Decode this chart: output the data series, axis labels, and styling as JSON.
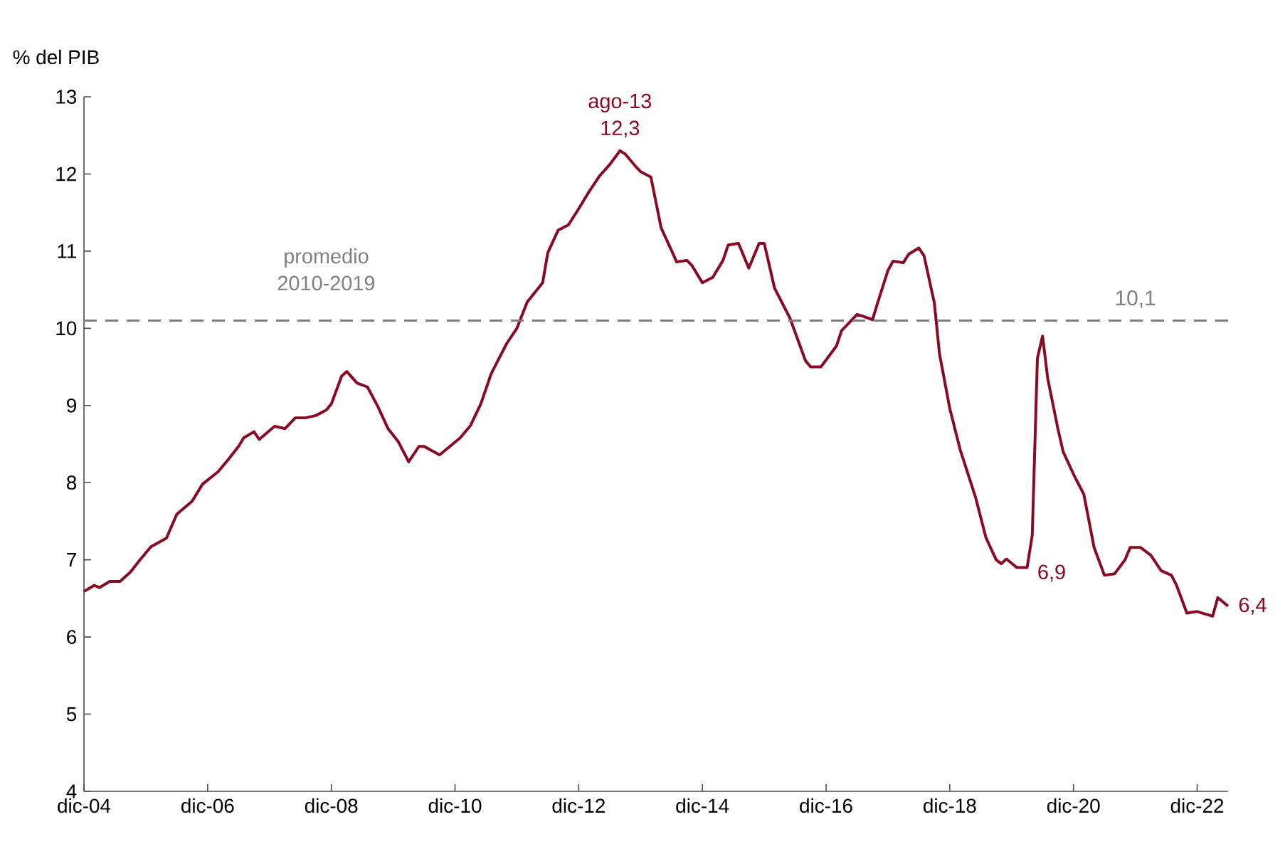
{
  "chart_data": {
    "type": "line",
    "ylabel": "% del PIB",
    "x": [
      "2004-12",
      "2005-02",
      "2005-03",
      "2005-05",
      "2005-07",
      "2005-09",
      "2005-11",
      "2006-01",
      "2006-04",
      "2006-06",
      "2006-09",
      "2006-11",
      "2007-02",
      "2007-04",
      "2007-06",
      "2007-07",
      "2007-09",
      "2007-10",
      "2008-01",
      "2008-03",
      "2008-05",
      "2008-07",
      "2008-09",
      "2008-11",
      "2008-12",
      "2009-02",
      "2009-03",
      "2009-05",
      "2009-07",
      "2009-09",
      "2009-11",
      "2010-01",
      "2010-03",
      "2010-05",
      "2010-06",
      "2010-09",
      "2010-11",
      "2011-01",
      "2011-03",
      "2011-05",
      "2011-07",
      "2011-10",
      "2011-12",
      "2012-02",
      "2012-05",
      "2012-06",
      "2012-08",
      "2012-10",
      "2012-12",
      "2013-02",
      "2013-04",
      "2013-06",
      "2013-08",
      "2013-09",
      "2013-11",
      "2013-12",
      "2014-02",
      "2014-04",
      "2014-06",
      "2014-07",
      "2014-09",
      "2014-10",
      "2014-12",
      "2015-02",
      "2015-04",
      "2015-05",
      "2015-07",
      "2015-09",
      "2015-11",
      "2015-12",
      "2016-02",
      "2016-05",
      "2016-08",
      "2016-09",
      "2016-11",
      "2017-02",
      "2017-03",
      "2017-06",
      "2017-07",
      "2017-09",
      "2017-10",
      "2017-12",
      "2018-01",
      "2018-03",
      "2018-04",
      "2018-06",
      "2018-07",
      "2018-09",
      "2018-10",
      "2018-12",
      "2019-02",
      "2019-05",
      "2019-07",
      "2019-09",
      "2019-10",
      "2019-11",
      "2020-01",
      "2020-03",
      "2020-04",
      "2020-05",
      "2020-06",
      "2020-07",
      "2020-09",
      "2020-10",
      "2020-12",
      "2021-02",
      "2021-04",
      "2021-06",
      "2021-08",
      "2021-10",
      "2021-11",
      "2022-01",
      "2022-03",
      "2022-05",
      "2022-07",
      "2022-08",
      "2022-10",
      "2022-12",
      "2023-03",
      "2023-04",
      "2023-06"
    ],
    "series": [
      {
        "color": "#8b0a23",
        "values": [
          6.59,
          6.67,
          6.64,
          6.72,
          6.72,
          6.84,
          7.01,
          7.17,
          7.28,
          7.59,
          7.76,
          7.98,
          8.14,
          8.3,
          8.47,
          8.58,
          8.66,
          8.56,
          8.73,
          8.7,
          8.84,
          8.84,
          8.87,
          8.94,
          9.02,
          9.38,
          9.44,
          9.29,
          9.24,
          8.99,
          8.7,
          8.53,
          8.27,
          8.47,
          8.47,
          8.36,
          8.47,
          8.58,
          8.74,
          9.02,
          9.41,
          9.8,
          10.0,
          10.34,
          10.59,
          10.98,
          11.27,
          11.34,
          11.55,
          11.77,
          11.97,
          12.12,
          12.3,
          12.26,
          12.1,
          12.03,
          11.96,
          11.3,
          11.01,
          10.86,
          10.88,
          10.81,
          10.59,
          10.66,
          10.88,
          11.08,
          11.1,
          10.78,
          11.1,
          11.1,
          10.52,
          10.13,
          9.58,
          9.5,
          9.5,
          9.77,
          9.97,
          10.18,
          10.16,
          10.11,
          10.33,
          10.75,
          10.87,
          10.85,
          10.96,
          11.04,
          10.94,
          10.33,
          9.67,
          8.96,
          8.43,
          7.81,
          7.29,
          7.0,
          6.95,
          7.01,
          6.9,
          6.9,
          7.32,
          9.61,
          9.9,
          9.35,
          8.69,
          8.4,
          8.11,
          7.85,
          7.16,
          6.8,
          6.82,
          7.0,
          7.16,
          7.16,
          7.06,
          6.86,
          6.8,
          6.67,
          6.31,
          6.33,
          6.27,
          6.51,
          6.4
        ]
      }
    ],
    "xlim": [
      "2004-12",
      "2023-06"
    ],
    "xticks": [
      {
        "value": "2004-12",
        "label": "dic-04"
      },
      {
        "value": "2006-12",
        "label": "dic-06"
      },
      {
        "value": "2008-12",
        "label": "dic-08"
      },
      {
        "value": "2010-12",
        "label": "dic-10"
      },
      {
        "value": "2012-12",
        "label": "dic-12"
      },
      {
        "value": "2014-12",
        "label": "dic-14"
      },
      {
        "value": "2016-12",
        "label": "dic-16"
      },
      {
        "value": "2018-12",
        "label": "dic-18"
      },
      {
        "value": "2020-12",
        "label": "dic-20"
      },
      {
        "value": "2022-12",
        "label": "dic-22"
      }
    ],
    "ylim": [
      4,
      13
    ],
    "yticks": [
      4,
      5,
      6,
      7,
      8,
      9,
      10,
      11,
      12,
      13
    ],
    "ref_lines": [
      {
        "axis": "y",
        "value": 10.1,
        "label": "10,1",
        "color": "#7f7f7f",
        "line_style": "dashed"
      }
    ],
    "annotations": [
      {
        "text": "ago-13 12,3",
        "x": "2013-08",
        "y": 12.3
      },
      {
        "text": "6,9",
        "x": "2020-03",
        "y": 6.9
      },
      {
        "text": "6,4",
        "x": "2023-06",
        "y": 6.4
      },
      {
        "text": "promedio 2010-2019",
        "x": "2008-11",
        "y": 10.1
      }
    ],
    "grid": false,
    "marker": "none",
    "line_style": "solid"
  }
}
